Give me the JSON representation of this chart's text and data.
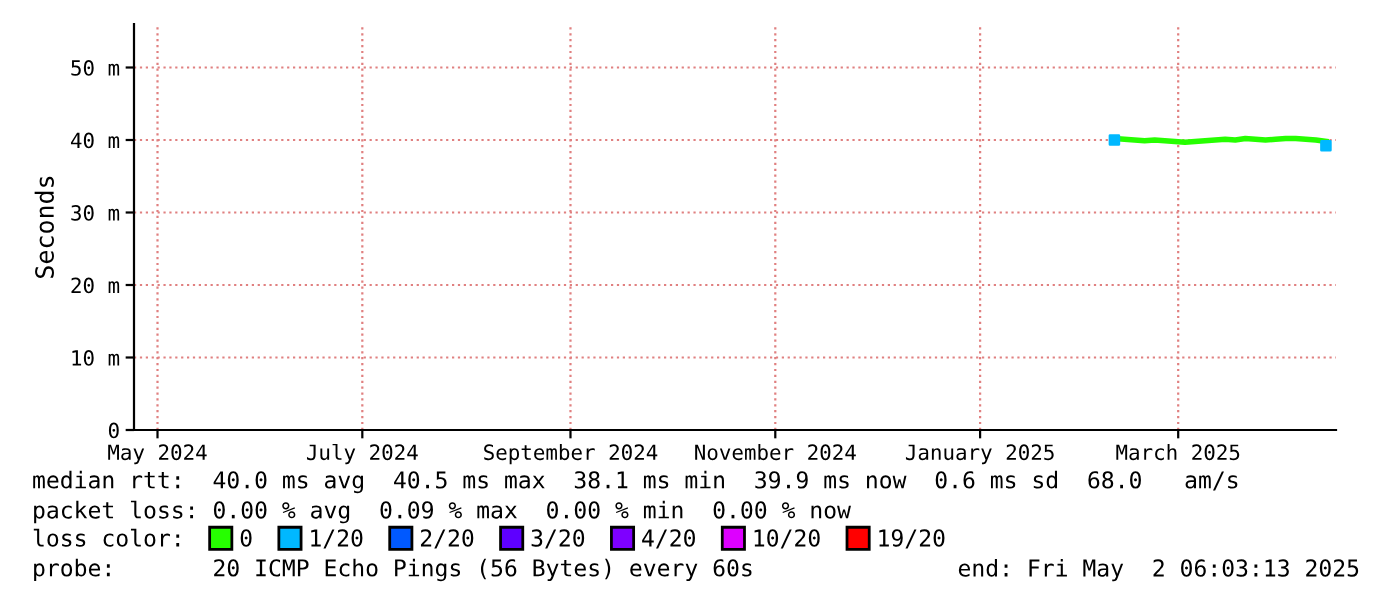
{
  "chart_data": {
    "type": "line",
    "ylabel": "Seconds",
    "legend_title": "loss color:",
    "legend": "bottom",
    "grid": true,
    "marker": "none",
    "line_style": "solid",
    "xlim": [
      "2024-04-24",
      "2025-04-17"
    ],
    "xticks": [
      {
        "value": "2024-05-01",
        "label": "May 2024"
      },
      {
        "value": "2024-07-01",
        "label": "July 2024"
      },
      {
        "value": "2024-09-01",
        "label": "September 2024"
      },
      {
        "value": "2024-11-01",
        "label": "November 2024"
      },
      {
        "value": "2025-01-01",
        "label": "January 2025"
      },
      {
        "value": "2025-03-01",
        "label": "March 2025"
      }
    ],
    "ylim": [
      0,
      56
    ],
    "yticks": [
      0,
      {
        "value": 10,
        "label": "10 m"
      },
      {
        "value": 20,
        "label": "20 m"
      },
      {
        "value": 30,
        "label": "30 m"
      },
      {
        "value": 40,
        "label": "40 m"
      },
      {
        "value": 50,
        "label": "50 m"
      }
    ],
    "series": [
      {
        "name": "0",
        "color": "#26ff00",
        "x": [
          "2025-02-10",
          "2025-02-13",
          "2025-02-16",
          "2025-02-19",
          "2025-02-22",
          "2025-02-25",
          "2025-02-28",
          "2025-03-03",
          "2025-03-06",
          "2025-03-09",
          "2025-03-12",
          "2025-03-15",
          "2025-03-18",
          "2025-03-21",
          "2025-03-24",
          "2025-03-27",
          "2025-03-30",
          "2025-04-02",
          "2025-04-05",
          "2025-04-08",
          "2025-04-11",
          "2025-04-14"
        ],
        "values": [
          40.2,
          40.1,
          40.0,
          39.9,
          40.0,
          39.9,
          39.8,
          39.7,
          39.8,
          39.9,
          40.0,
          40.1,
          40.0,
          40.2,
          40.1,
          40.0,
          40.1,
          40.2,
          40.2,
          40.1,
          40.0,
          39.8
        ]
      },
      {
        "name": "1/20",
        "type": "scatter",
        "marker": "square",
        "color": "#00b8ff",
        "x": [
          "2025-02-10",
          "2025-04-14"
        ],
        "values": [
          40.0,
          39.2
        ]
      },
      {
        "name": "2/20",
        "type": "scatter",
        "color": "#0059ff"
      },
      {
        "name": "3/20",
        "type": "scatter",
        "color": "#5e00ff"
      },
      {
        "name": "4/20",
        "type": "scatter",
        "color": "#7e00ff"
      },
      {
        "name": "10/20",
        "type": "scatter",
        "color": "#dd00ff"
      },
      {
        "name": "19/20",
        "type": "scatter",
        "color": "#ff0000"
      }
    ],
    "annotations": [
      "median rtt:  40.0 ms avg  40.5 ms max  38.1 ms min  39.9 ms now  0.6 ms sd  68.0   am/s",
      "packet loss: 0.00 % avg  0.09 % max  0.00 % min  0.00 % now",
      "probe:       20 ICMP Echo Pings (56 Bytes) every 60s",
      "end: Fri May  2 06:03:13 2025"
    ]
  }
}
